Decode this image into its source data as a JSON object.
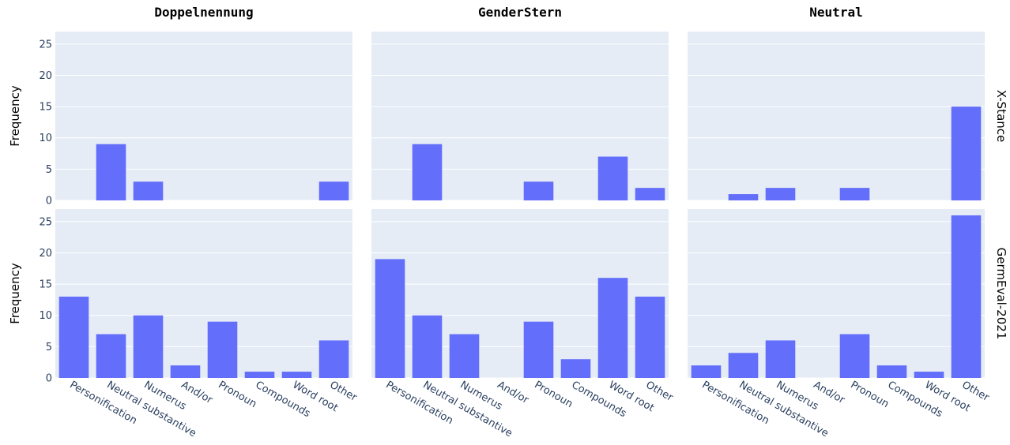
{
  "chart_data": {
    "type": "bar",
    "layout": "facet-grid",
    "columns": [
      "Doppelnennung",
      "GenderStern",
      "Neutral"
    ],
    "rows": [
      "X-Stance",
      "GermEval-2021"
    ],
    "categories": [
      "Personification",
      "Neutral substantive",
      "Numerus",
      "And/or",
      "Pronoun",
      "Compounds",
      "Word root",
      "Other"
    ],
    "ylabel": "Frequency",
    "xlabel": "",
    "ylim": [
      0,
      27
    ],
    "yticks": [
      0,
      5,
      10,
      15,
      20,
      25
    ],
    "bar_color": "#636efa",
    "plot_bg": "#e5ecf6",
    "panels": [
      {
        "row": "X-Stance",
        "column": "Doppelnennung",
        "values": [
          0,
          9,
          3,
          0,
          0,
          0,
          0,
          3
        ]
      },
      {
        "row": "X-Stance",
        "column": "GenderStern",
        "values": [
          0,
          9,
          0,
          0,
          3,
          0,
          7,
          2
        ]
      },
      {
        "row": "X-Stance",
        "column": "Neutral",
        "values": [
          0,
          1,
          2,
          0,
          2,
          0,
          0,
          15
        ]
      },
      {
        "row": "GermEval-2021",
        "column": "Doppelnennung",
        "values": [
          13,
          7,
          10,
          2,
          9,
          1,
          1,
          6
        ]
      },
      {
        "row": "GermEval-2021",
        "column": "GenderStern",
        "values": [
          19,
          10,
          7,
          0,
          9,
          3,
          16,
          13
        ]
      },
      {
        "row": "GermEval-2021",
        "column": "Neutral",
        "values": [
          2,
          4,
          6,
          0,
          7,
          2,
          1,
          26
        ]
      }
    ]
  }
}
